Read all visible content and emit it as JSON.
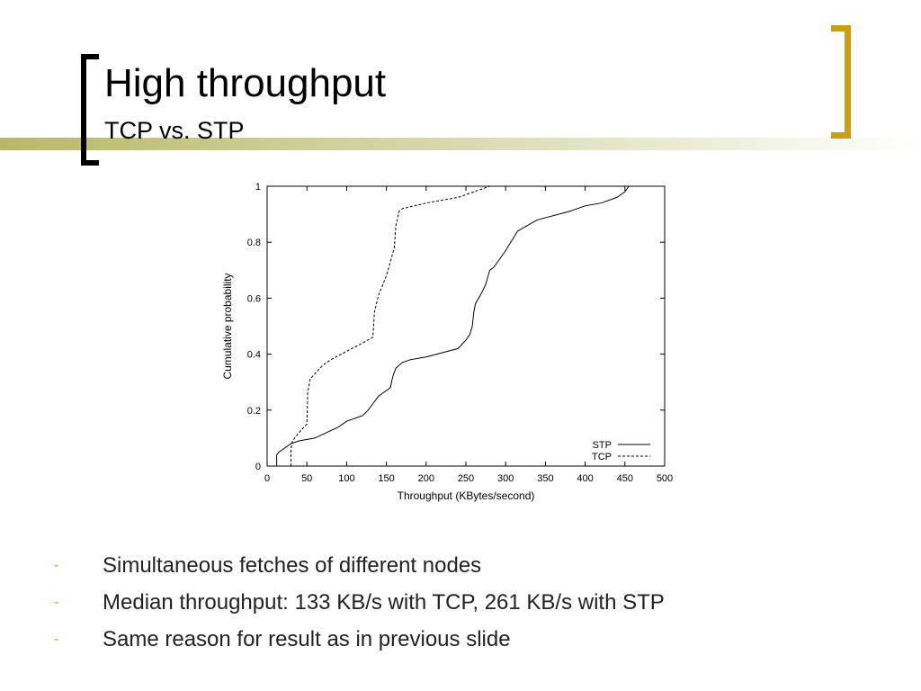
{
  "slide": {
    "title": "High throughput",
    "subtitle": "TCP vs. STP"
  },
  "colors": {
    "accent": "#c9a012",
    "deco_bar": "#b8b86a"
  },
  "bullets": [
    {
      "marker": "-",
      "text": "Simultaneous fetches of different nodes"
    },
    {
      "marker": "-",
      "text": "Median throughput: 133 KB/s with TCP, 261 KB/s with STP"
    },
    {
      "marker": "-",
      "text": "Same reason for result as in previous slide"
    }
  ],
  "chart_data": {
    "type": "line",
    "title": "",
    "xlabel": "Throughput (KBytes/second)",
    "ylabel": "Cumulative probability",
    "xlim": [
      0,
      500
    ],
    "ylim": [
      0,
      1
    ],
    "xticks": [
      0,
      50,
      100,
      150,
      200,
      250,
      300,
      350,
      400,
      450,
      500
    ],
    "yticks": [
      0,
      0.2,
      0.4,
      0.6,
      0.8,
      1
    ],
    "ytick_labels": [
      "0",
      "0.2",
      "0.4",
      "0.6",
      "0.8",
      "1"
    ],
    "grid": false,
    "legend_position": "bottom-right",
    "series": [
      {
        "name": "STP",
        "style": "solid",
        "x": [
          12,
          12,
          15,
          30,
          40,
          60,
          75,
          90,
          100,
          120,
          127,
          135,
          140,
          150,
          155,
          158,
          162,
          170,
          180,
          200,
          240,
          250,
          255,
          258,
          260,
          262,
          270,
          275,
          280,
          285,
          290,
          300,
          315,
          340,
          380,
          400,
          420,
          440,
          450,
          455
        ],
        "y": [
          0,
          0.04,
          0.05,
          0.08,
          0.09,
          0.1,
          0.12,
          0.14,
          0.16,
          0.18,
          0.2,
          0.23,
          0.25,
          0.27,
          0.28,
          0.32,
          0.35,
          0.37,
          0.38,
          0.39,
          0.42,
          0.45,
          0.47,
          0.5,
          0.55,
          0.58,
          0.62,
          0.65,
          0.7,
          0.71,
          0.73,
          0.77,
          0.84,
          0.88,
          0.91,
          0.93,
          0.94,
          0.96,
          0.98,
          1.0
        ]
      },
      {
        "name": "TCP",
        "style": "dashed",
        "x": [
          30,
          30,
          32,
          40,
          50,
          51,
          54,
          60,
          70,
          80,
          100,
          120,
          133,
          135,
          140,
          150,
          160,
          162,
          166,
          170,
          200,
          240,
          260,
          280
        ],
        "y": [
          0,
          0.06,
          0.09,
          0.12,
          0.15,
          0.26,
          0.31,
          0.33,
          0.36,
          0.38,
          0.41,
          0.44,
          0.46,
          0.55,
          0.61,
          0.68,
          0.78,
          0.86,
          0.91,
          0.92,
          0.94,
          0.96,
          0.98,
          1.0
        ]
      }
    ]
  }
}
